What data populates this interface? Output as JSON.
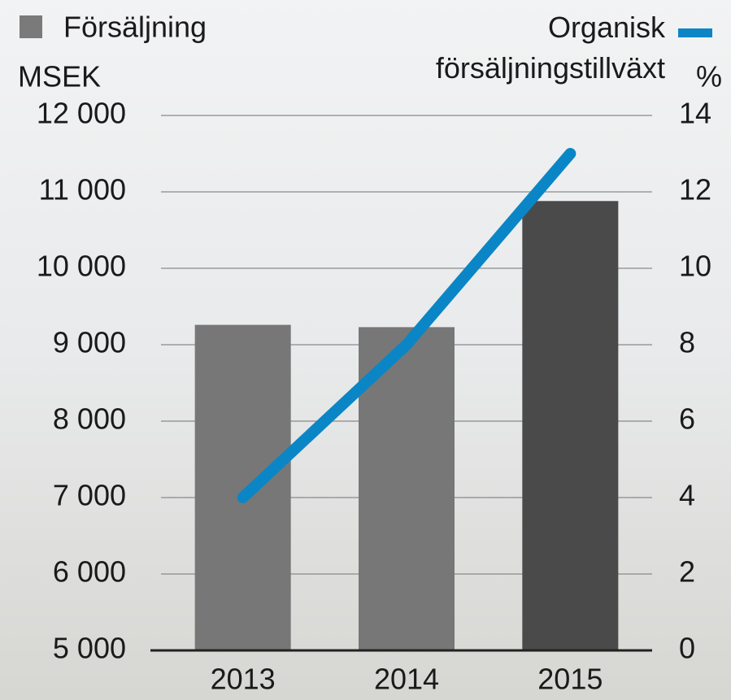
{
  "chart_data": {
    "type": "bar_line",
    "categories": [
      "2013",
      "2014",
      "2015"
    ],
    "series": [
      {
        "name": "Försäljning",
        "type": "bar",
        "color": "#7a7a7a",
        "colors": [
          "#777777",
          "#777777",
          "#4a4a4a"
        ],
        "values": [
          9260,
          9230,
          10880
        ]
      },
      {
        "name": "Organisk försäljningstillväxt",
        "type": "line",
        "axis": "y2",
        "color": "#0a86c6",
        "values": [
          4,
          8,
          13
        ]
      }
    ],
    "ylabel": "MSEK",
    "y2label": "%",
    "ylim": [
      5000,
      12000
    ],
    "yticks": [
      {
        "value": 5000,
        "label": "5 000"
      },
      {
        "value": 6000,
        "label": "6 000"
      },
      {
        "value": 7000,
        "label": "7 000"
      },
      {
        "value": 8000,
        "label": "8 000"
      },
      {
        "value": 9000,
        "label": "9 000"
      },
      {
        "value": 10000,
        "label": "10 000"
      },
      {
        "value": 11000,
        "label": "11 000"
      },
      {
        "value": 12000,
        "label": "12 000"
      }
    ],
    "y2lim": [
      0,
      14
    ],
    "y2ticks": [
      0,
      2,
      4,
      6,
      8,
      10,
      12,
      14
    ],
    "grid": true
  }
}
